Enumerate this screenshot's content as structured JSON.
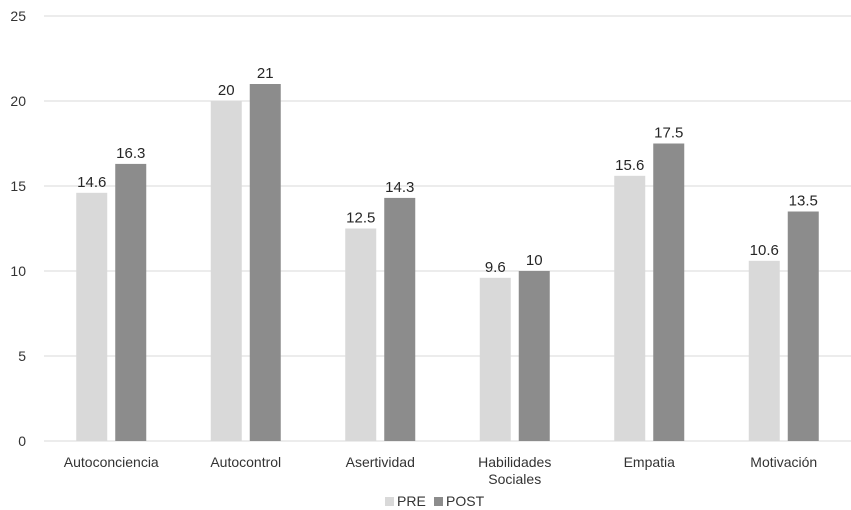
{
  "chart_data": {
    "type": "bar",
    "categories": [
      [
        "Autoconciencia"
      ],
      [
        "Autocontrol"
      ],
      [
        "Asertividad"
      ],
      [
        "Habilidades",
        "Sociales"
      ],
      [
        "Empatia"
      ],
      [
        "Motivación"
      ]
    ],
    "series": [
      {
        "name": "PRE",
        "values": [
          14.6,
          20,
          12.5,
          9.6,
          15.6,
          10.6
        ],
        "color": "#d9d9d9"
      },
      {
        "name": "POST",
        "values": [
          16.3,
          21,
          14.3,
          10,
          17.5,
          13.5
        ],
        "color": "#8c8c8c"
      }
    ],
    "data_labels": [
      [
        "14.6",
        "20",
        "12.5",
        "9.6",
        "15.6",
        "10.6"
      ],
      [
        "16.3",
        "21",
        "14.3",
        "10",
        "17.5",
        "13.5"
      ]
    ],
    "y_ticks": [
      "0",
      "5",
      "10",
      "15",
      "20",
      "25"
    ],
    "ylim": [
      0,
      25
    ],
    "grid": true,
    "legend_position": "bottom",
    "gridline_color": "#d9d9d9"
  }
}
